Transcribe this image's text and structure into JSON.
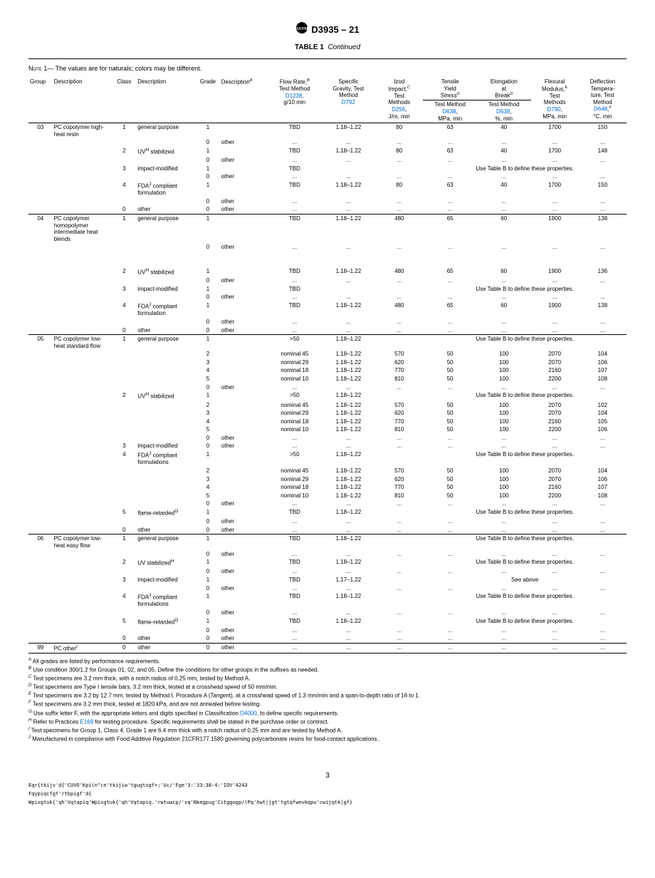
{
  "header": {
    "designation": "D3935 – 21",
    "table_label": "TABLE 1",
    "continued": "Continued"
  },
  "note": {
    "label": "Note 1—",
    "text": " The values are for naturals; colors may be different."
  },
  "columns": [
    "Group",
    "Description",
    "Class",
    "Description",
    "Grade",
    "Description",
    "Flow Rate, Test Method D1238, g/10 min",
    "Specific Gravity, Test Method D792",
    "Izod Impact, Test Methods D256, J/m, min",
    "Tensile Yield Stress Test Method D638, MPa, min",
    "Elongation at Break Test Method D638, %, min",
    "Flexural Modulus, Test Methods D790, MPa, min",
    "Deflection Temperature, Test Method D648, °C, min"
  ],
  "col_sup": [
    "",
    "",
    "",
    "",
    "",
    "A",
    "B",
    "",
    "C",
    "D",
    "D",
    "E",
    "F"
  ],
  "methods": {
    "d1238": "D1238",
    "d792": "D792",
    "d256": "D256",
    "d638": "D638",
    "d790": "D790",
    "d648": "D648"
  },
  "useB": "Use Table B to define these properties.",
  "seeAbove": "See above",
  "rows": [
    [
      "03",
      "PC copolymer high-heat resin",
      "1",
      "general purpose",
      "1",
      "",
      "TBD",
      "1.18–1.22",
      "80",
      "63",
      "40",
      "1700",
      "150"
    ],
    [
      "",
      "",
      "",
      "",
      "0",
      "other",
      "...",
      "...",
      "...",
      "...",
      "...",
      "...",
      "..."
    ],
    [
      "",
      "",
      "2",
      "UV<sup>H</sup> stabilized",
      "1",
      "",
      "TBD",
      "1.18–1.22",
      "80",
      "63",
      "40",
      "1700",
      "148"
    ],
    [
      "",
      "",
      "",
      "",
      "0",
      "other",
      "...",
      "...",
      "...",
      "...",
      "...",
      "...",
      "..."
    ],
    [
      "",
      "",
      "3",
      "impact-modified",
      "1",
      "",
      "TBD",
      "",
      "",
      "USE_B",
      "",
      "",
      ""
    ],
    [
      "",
      "",
      "",
      "",
      "0",
      "other",
      "...",
      "...",
      "...",
      "...",
      "...",
      "...",
      "..."
    ],
    [
      "",
      "",
      "4",
      "FDA<sup>J</sup> compliant formulation",
      "1",
      "",
      "TBD",
      "1.18–1.22",
      "80",
      "63",
      "40",
      "1700",
      "150"
    ],
    [
      "",
      "",
      "",
      "",
      "0",
      "other",
      "...",
      "...",
      "...",
      "...",
      "...",
      "...",
      "..."
    ],
    [
      "",
      "",
      "0",
      "other",
      "0",
      "other",
      "...",
      "...",
      "...",
      "...",
      "...",
      "...",
      "..."
    ],
    [
      "HLINE04",
      "PC copolymer homopolymer intermediate heat blends",
      "1",
      "general purpose",
      "1",
      "",
      "TBD",
      "1.18–1.22",
      "480",
      "65",
      "60",
      "1900",
      "138"
    ],
    [
      "",
      "",
      "",
      "",
      "0",
      "other",
      "...",
      "...",
      "...",
      "...",
      "...",
      "...",
      "..."
    ],
    [
      "",
      "",
      "",
      "",
      "",
      "",
      "",
      "",
      "",
      "",
      "",
      "",
      ""
    ],
    [
      "",
      "",
      "",
      "",
      "",
      "",
      "",
      "",
      "",
      "",
      "",
      "",
      ""
    ],
    [
      "",
      "",
      "2",
      "UV<sup>H</sup> stabilized",
      "1",
      "",
      "TBD",
      "1.18–1.22",
      "480",
      "65",
      "60",
      "1900",
      "136"
    ],
    [
      "",
      "",
      "",
      "",
      "0",
      "other",
      "...",
      "...",
      "...",
      "...",
      "...",
      "...",
      "..."
    ],
    [
      "",
      "",
      "3",
      "impact-modified",
      "1",
      "",
      "TBD",
      "",
      "",
      "USE_B",
      "",
      "",
      ""
    ],
    [
      "",
      "",
      "",
      "",
      "0",
      "other",
      "...",
      "...",
      "...",
      "...",
      "...",
      "...",
      "..."
    ],
    [
      "",
      "",
      "4",
      "FDA<sup>J</sup> compliant formulation",
      "1",
      "",
      "TBD",
      "1.18–1.22",
      "480",
      "65",
      "60",
      "1900",
      "138"
    ],
    [
      "",
      "",
      "",
      "",
      "0",
      "other",
      "...",
      "...",
      "...",
      "...",
      "...",
      "...",
      "..."
    ],
    [
      "",
      "",
      "0",
      "other",
      "0",
      "other",
      "...",
      "...",
      "...",
      "...",
      "...",
      "...",
      "..."
    ],
    [
      "HLINE05",
      "PC copolymer low-heat standard flow",
      "1",
      "general purpose",
      "1",
      "",
      ">50",
      "1.18–1.22",
      "",
      "USE_B",
      "",
      "",
      ""
    ],
    [
      "",
      "",
      "",
      "",
      "2",
      "",
      "nominal 45",
      "1.18–1.22",
      "570",
      "50",
      "100",
      "2070",
      "104"
    ],
    [
      "",
      "",
      "",
      "",
      "3",
      "",
      "nominal 29",
      "1.18–1.22",
      "620",
      "50",
      "100",
      "2070",
      "106"
    ],
    [
      "",
      "",
      "",
      "",
      "4",
      "",
      "nominal 18",
      "1.18–1.22",
      "770",
      "50",
      "100",
      "2160",
      "107"
    ],
    [
      "",
      "",
      "",
      "",
      "5",
      "",
      "nominal 10",
      "1.18–1.22",
      "810",
      "50",
      "100",
      "2200",
      "108"
    ],
    [
      "",
      "",
      "",
      "",
      "0",
      "other",
      "...",
      "...",
      "...",
      "...",
      "...",
      "...",
      "..."
    ],
    [
      "",
      "",
      "2",
      "UV<sup>H</sup> stabilized",
      "1",
      "",
      ">50",
      "1.18–1.22",
      "",
      "USE_B",
      "",
      "",
      ""
    ],
    [
      "",
      "",
      "",
      "",
      "2",
      "",
      "nominal 45",
      "1.18–1.22",
      "570",
      "50",
      "100",
      "2070",
      "102"
    ],
    [
      "",
      "",
      "",
      "",
      "3",
      "",
      "nominal 29",
      "1.18–1.22",
      "620",
      "50",
      "100",
      "2070",
      "104"
    ],
    [
      "",
      "",
      "",
      "",
      "4",
      "",
      "nominal 18",
      "1.18–1.22",
      "770",
      "50",
      "100",
      "2160",
      "105"
    ],
    [
      "",
      "",
      "",
      "",
      "5",
      "",
      "nominal 10",
      "1.18–1.22",
      "810",
      "50",
      "100",
      "2200",
      "106"
    ],
    [
      "",
      "",
      "",
      "",
      "0",
      "other",
      "...",
      "...",
      "...",
      "...",
      "...",
      "...",
      "..."
    ],
    [
      "",
      "",
      "3",
      "impact-modified",
      "0",
      "other",
      "...",
      "...",
      "...",
      "...",
      "...",
      "...",
      "..."
    ],
    [
      "",
      "",
      "4",
      "FDA<sup>J</sup> compliant formulations",
      "1",
      "",
      ">50",
      "1.18–1.22",
      "",
      "USE_B",
      "",
      "",
      ""
    ],
    [
      "",
      "",
      "",
      "",
      "2",
      "",
      "nominal 45",
      "1.18–1.22",
      "570",
      "50",
      "100",
      "2070",
      "104"
    ],
    [
      "",
      "",
      "",
      "",
      "3",
      "",
      "nominal 29",
      "1.18–1.22",
      "620",
      "50",
      "100",
      "2070",
      "106"
    ],
    [
      "",
      "",
      "",
      "",
      "4",
      "",
      "nominal 18",
      "1.18–1.22",
      "770",
      "50",
      "100",
      "2160",
      "107"
    ],
    [
      "",
      "",
      "",
      "",
      "5",
      "",
      "nominal 10",
      "1.18–1.22",
      "810",
      "50",
      "100",
      "2200",
      "108"
    ],
    [
      "",
      "",
      "",
      "",
      "0",
      "other",
      "...",
      "...",
      "...",
      "...",
      "...",
      "...",
      "..."
    ],
    [
      "",
      "",
      "5",
      "flame-retarded<sup>G</sup>",
      "1",
      "",
      "TBD",
      "1.18–1.22",
      "",
      "USE_B",
      "",
      "",
      ""
    ],
    [
      "",
      "",
      "",
      "",
      "0",
      "other",
      "...",
      "...",
      "...",
      "...",
      "...",
      "...",
      "..."
    ],
    [
      "",
      "",
      "0",
      "other",
      "0",
      "other",
      "...",
      "...",
      "...",
      "...",
      "...",
      "...",
      "..."
    ],
    [
      "HLINE06",
      "PC copolymer low-heat easy flow",
      "1",
      "general purpose",
      "1",
      "",
      "TBD",
      "1.18–1.22",
      "",
      "USE_B",
      "",
      "",
      ""
    ],
    [
      "",
      "",
      "",
      "",
      "0",
      "other",
      "...",
      "...",
      "...",
      "...",
      "...",
      "...",
      "..."
    ],
    [
      "",
      "",
      "2",
      "UV stabilized<sup>H</sup>",
      "1",
      "",
      "TBD",
      "1.18–1.22",
      "",
      "USE_B",
      "",
      "",
      ""
    ],
    [
      "",
      "",
      "",
      "",
      "0",
      "other",
      "...",
      "...",
      "...",
      "...",
      "...",
      "...",
      "..."
    ],
    [
      "",
      "",
      "3",
      "impact-modified",
      "1",
      "",
      "TBD",
      "1.17–1.22",
      "",
      "SEE_ABOVE",
      "",
      "",
      ""
    ],
    [
      "",
      "",
      "",
      "",
      "0",
      "other",
      "...",
      "...",
      "...",
      "...",
      "...",
      "...",
      "..."
    ],
    [
      "",
      "",
      "4",
      "FDA<sup>J</sup> compliant formulations",
      "1",
      "",
      "TBD",
      "1.18–1.22",
      "",
      "USE_B",
      "",
      "",
      ""
    ],
    [
      "",
      "",
      "",
      "",
      "0",
      "other",
      "...",
      "...",
      "...",
      "...",
      "...",
      "...",
      "..."
    ],
    [
      "",
      "",
      "5",
      "flame-retarded<sup>G</sup>",
      "1",
      "",
      "TBD",
      "1.18–1.22",
      "",
      "USE_B",
      "",
      "",
      ""
    ],
    [
      "",
      "",
      "",
      "",
      "0",
      "other",
      "...",
      "...",
      "...",
      "...",
      "...",
      "...",
      "..."
    ],
    [
      "",
      "",
      "0",
      "other",
      "0",
      "other",
      "...",
      "...",
      "...",
      "...",
      "...",
      "...",
      "..."
    ],
    [
      "HLINE99",
      "PC other<sup>I</sup>",
      "0",
      "other",
      "0",
      "other",
      "...",
      "...",
      "...",
      "...",
      "...",
      "...",
      "..."
    ]
  ],
  "footnotes": [
    {
      "sup": "A",
      "text": "All grades are listed by performance requirements."
    },
    {
      "sup": "B",
      "text": "Use condition 300/1.2 for Groups 01, 02, and 05. Define the conditions for other groups in the suffixes as needed."
    },
    {
      "sup": "C",
      "text": "Test specimens are 3.2 mm thick, with a notch radius of 0.25 mm, tested by Method A."
    },
    {
      "sup": "D",
      "text": "Test specimens are Type I tensile bars, 3.2 mm thick, tested at a crosshead speed of 50 mm/min."
    },
    {
      "sup": "E",
      "text": "Test specimens are 3.2 by 12.7 mm, tested by Method I, Procedure A (Tangent), at a crosshead speed of 1.3 mm/min and a span-to-depth ratio of 16 to 1."
    },
    {
      "sup": "F",
      "text": "Test specimens are 3.2 mm thick, tested at 1820 kPa, and are not annealed before testing."
    },
    {
      "sup": "G",
      "text": "Use suffix letter F, with the appropriate letters and digits specified in Classification <span class=\"link\">D4000</span>, to define specific requirements."
    },
    {
      "sup": "H",
      "text": "Refer to Practices <span class=\"link\">E169</span> for testing procedure. Specific requirements shall be stated in the purchase order or contract."
    },
    {
      "sup": "I",
      "text": "Test specimens for Group 1, Class 4, Grade 1 are 6.4 mm thick with a notch radius of 0.25 mm and are tested by Method A."
    },
    {
      "sup": "J",
      "text": "Manufactured in compliance with Food Additive Regulation 21CFR177.1580 governing polycarbonate resins for food-contact applications.."
    }
  ],
  "page_number": "3",
  "bottom1": "Eqr{tkijv'd{'CUVO'Kpi(n\"cn'tkijiw'tgugtxgf+;'Uc/'Fge'3:'33:38-4:'IOV'4243",
  "bottom2": "Fqypiqcfgf'rtbpigf'd{",
  "bottom3": "Wpixgtuk{'qh'Vqtapiq'Wpixgtuk{'qh'Vqtapiq.'rwtuwcp/'vq'Nkegpug'Citggogp/(Pq'hwt|jgt'tgtqfwevkqpu'cwijqtk|gf}"
}
